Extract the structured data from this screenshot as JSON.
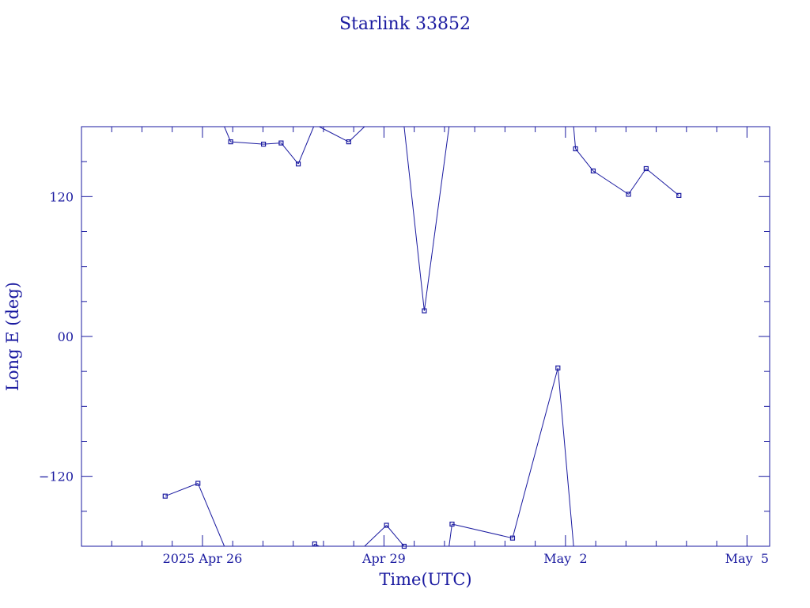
{
  "colors": {
    "ink": "#1a1aa0",
    "background": "#ffffff"
  },
  "chart_data": {
    "type": "line",
    "title": "Starlink 33852",
    "xlabel": "Time(UTC)",
    "ylabel": "Long E (deg)",
    "xlim": [
      "2025-04-24",
      "2025-05-05T09:00"
    ],
    "ylim": [
      -180,
      180
    ],
    "y_ticks": [
      -120,
      0,
      120
    ],
    "y_tick_labels": [
      "−120",
      "00",
      "120"
    ],
    "x_ticks": [
      "2025-04-26",
      "2025-04-29",
      "2025-05-02",
      "2025-05-05"
    ],
    "x_tick_labels": [
      "2025 Apr 26",
      "Apr 29",
      "May  2",
      "May  5"
    ],
    "grid": false,
    "series": [
      {
        "marker": "square",
        "points": [
          {
            "x": "2025-04-25T09:12",
            "y": -137
          },
          {
            "x": "2025-04-25T22:12",
            "y": -126
          },
          {
            "x": "2025-04-26T11:12",
            "y": 167
          },
          {
            "x": "2025-04-27T00:12",
            "y": 165
          },
          {
            "x": "2025-04-27T07:12",
            "y": 166
          },
          {
            "x": "2025-04-27T14:00",
            "y": 148
          },
          {
            "x": "2025-04-27T20:30",
            "y": -178
          },
          {
            "x": "2025-04-28T10:00",
            "y": 167
          },
          {
            "x": "2025-04-29T01:00",
            "y": -162
          },
          {
            "x": "2025-04-29T08:00",
            "y": -180
          },
          {
            "x": "2025-04-29T16:00",
            "y": 22
          },
          {
            "x": "2025-04-30T03:00",
            "y": -161
          },
          {
            "x": "2025-05-01T03:00",
            "y": -173
          },
          {
            "x": "2025-05-01T21:00",
            "y": -27
          },
          {
            "x": "2025-05-02T04:00",
            "y": 161
          },
          {
            "x": "2025-05-02T11:00",
            "y": 142
          },
          {
            "x": "2025-05-03T01:00",
            "y": 122
          },
          {
            "x": "2025-05-03T08:00",
            "y": 144
          },
          {
            "x": "2025-05-03T21:00",
            "y": 121
          }
        ]
      }
    ]
  }
}
